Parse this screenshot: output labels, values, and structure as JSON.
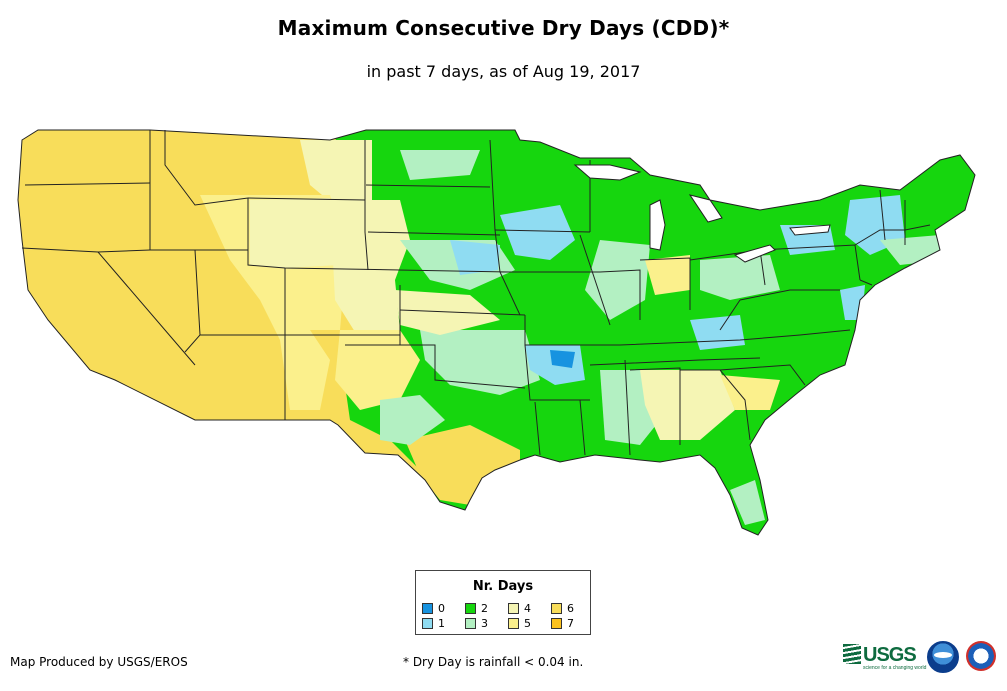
{
  "title": "Maximum Consecutive Dry Days (CDD)*",
  "subtitle": "in past 7 days, as of Aug 19, 2017",
  "legend": {
    "title": "Nr. Days",
    "items": [
      {
        "label": "0",
        "color": "#1793e0"
      },
      {
        "label": "1",
        "color": "#8fdcf2"
      },
      {
        "label": "2",
        "color": "#16d60e"
      },
      {
        "label": "3",
        "color": "#b3f0c2"
      },
      {
        "label": "4",
        "color": "#f5f5b4"
      },
      {
        "label": "5",
        "color": "#fbf08c"
      },
      {
        "label": "6",
        "color": "#f8dd5a"
      },
      {
        "label": "7",
        "color": "#fcc21e"
      }
    ]
  },
  "credit": "Map Produced by USGS/EROS",
  "footnote": "* Dry Day is rainfall < 0.04 in.",
  "logos": [
    "USGS",
    "NOAA",
    "National Weather Service"
  ],
  "usgs_tagline": "science for a changing world",
  "colors": {
    "state_border": "#222222",
    "background": "#ffffff"
  }
}
